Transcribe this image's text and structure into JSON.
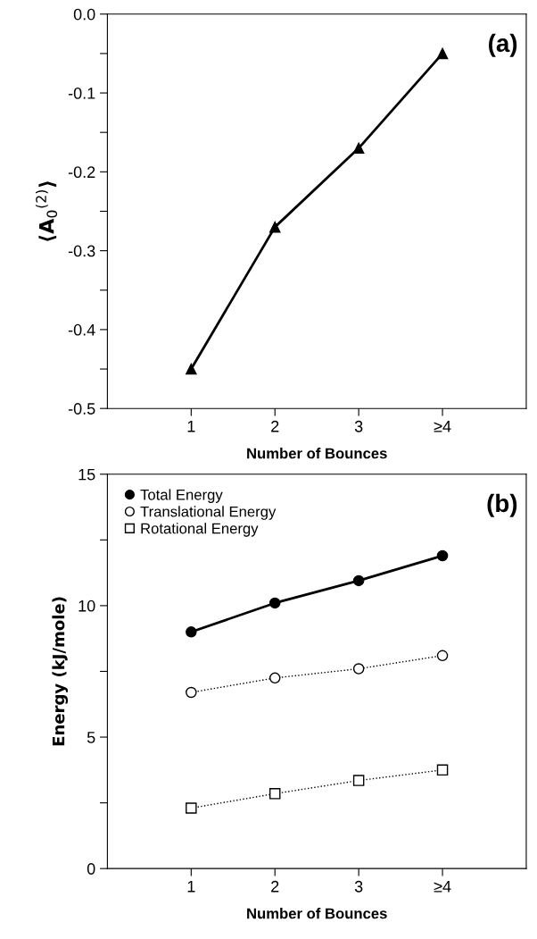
{
  "chart_data": [
    {
      "type": "line",
      "ylabel": "⟨A$_{0}$$^{(2)}$⟩",
      "xlabel": "Number of Bounces",
      "annotations": [
        "(a)"
      ],
      "categories": [
        "1",
        "2",
        "3",
        "≥4"
      ],
      "series": [
        {
          "color": "#000000",
          "values": [
            -0.45,
            -0.27,
            -0.17,
            -0.05
          ],
          "marker": "triangle",
          "line_style": "solid"
        }
      ],
      "ylim": [
        -0.5,
        0.0
      ],
      "yticks": [
        -0.5,
        {
          "value": -0.45,
          "label": null
        },
        -0.4,
        {
          "value": -0.35,
          "label": null
        },
        -0.3,
        {
          "value": -0.25,
          "label": null
        },
        -0.2,
        {
          "value": -0.15,
          "label": null
        },
        -0.1,
        {
          "value": -0.05,
          "label": null
        },
        {
          "value": 0.0,
          "label": "0.0"
        }
      ],
      "grid": false,
      "legend": false
    },
    {
      "type": "line",
      "ylabel": "Energy (kJ/mole)",
      "xlabel": "Number of Bounces",
      "annotations": [
        "(b)"
      ],
      "categories": [
        "1",
        "2",
        "3",
        "≥4"
      ],
      "series": [
        {
          "name": "Total Energy",
          "color": "#000000",
          "values": [
            9.0,
            10.1,
            10.95,
            11.9
          ],
          "marker": "circle",
          "line_style": "solid"
        },
        {
          "name": "Translational Energy",
          "color": "#000000",
          "values": [
            6.7,
            7.25,
            7.6,
            8.1
          ],
          "marker": "circle",
          "line_style": "dotted"
        },
        {
          "name": "Rotational Energy",
          "color": "#000000",
          "values": [
            2.3,
            2.85,
            3.35,
            3.75
          ],
          "marker": "square",
          "line_style": "dotted"
        }
      ],
      "ylim": [
        0,
        15
      ],
      "yticks": [
        0,
        {
          "value": 2.5,
          "label": null
        },
        5,
        {
          "value": 7.5,
          "label": null
        },
        10,
        {
          "value": 12.5,
          "label": null
        },
        15
      ],
      "grid": false,
      "legend": "top left"
    }
  ]
}
